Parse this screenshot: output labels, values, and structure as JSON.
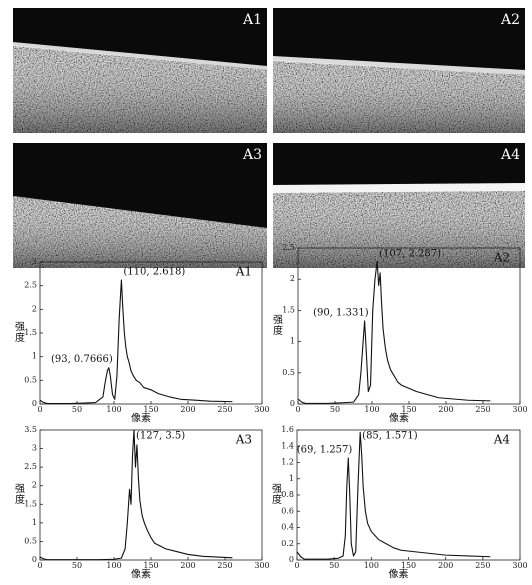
{
  "images": [
    {
      "label": "A1"
    },
    {
      "label": "A2"
    },
    {
      "label": "A3"
    },
    {
      "label": "A4"
    }
  ],
  "chart_data": [
    {
      "type": "line",
      "label": "A1",
      "ylabel": "强度",
      "xlabel": "像素",
      "xlim": [
        0,
        300
      ],
      "xticks": [
        0,
        50,
        100,
        150,
        200,
        250,
        300
      ],
      "ylim": [
        0,
        3
      ],
      "yticks": [
        0,
        0.5,
        1,
        1.5,
        2,
        2.5,
        3
      ],
      "x": [
        0,
        5,
        10,
        20,
        40,
        60,
        75,
        85,
        88,
        91,
        93,
        95,
        98,
        101,
        104,
        107,
        110,
        112,
        114,
        116,
        118,
        120,
        123,
        126,
        130,
        135,
        140,
        150,
        160,
        175,
        190,
        210,
        230,
        260
      ],
      "series": [
        {
          "color": "#111111",
          "values": [
            0.08,
            0.03,
            0.01,
            0.01,
            0.01,
            0.02,
            0.03,
            0.15,
            0.45,
            0.7,
            0.7666,
            0.6,
            0.2,
            0.1,
            0.6,
            1.8,
            2.618,
            2.0,
            1.5,
            1.2,
            1.0,
            0.9,
            0.7,
            0.6,
            0.5,
            0.45,
            0.35,
            0.3,
            0.22,
            0.15,
            0.1,
            0.08,
            0.06,
            0.05
          ]
        }
      ],
      "annotations": [
        {
          "text": "(93, 0.7666)",
          "x": 93,
          "y": 0.7666
        },
        {
          "text": "(110, 2.618)",
          "x": 110,
          "y": 2.618
        }
      ]
    },
    {
      "type": "line",
      "label": "A2",
      "ylabel": "强度",
      "xlabel": "像素",
      "xlim": [
        0,
        300
      ],
      "xticks": [
        0,
        50,
        100,
        150,
        200,
        250,
        300
      ],
      "ylim": [
        0,
        2.5
      ],
      "yticks": [
        0,
        0.5,
        1,
        1.5,
        2,
        2.5
      ],
      "x": [
        0,
        5,
        10,
        20,
        40,
        60,
        75,
        82,
        85,
        88,
        90,
        92,
        95,
        98,
        101,
        104,
        107,
        109,
        111,
        113,
        115,
        118,
        121,
        125,
        130,
        135,
        140,
        150,
        160,
        175,
        190,
        210,
        230,
        260
      ],
      "series": [
        {
          "color": "#111111",
          "values": [
            0.08,
            0.03,
            0.01,
            0.01,
            0.01,
            0.02,
            0.03,
            0.15,
            0.5,
            1.0,
            1.331,
            0.9,
            0.2,
            0.3,
            1.5,
            2.0,
            2.287,
            1.9,
            2.1,
            1.6,
            1.2,
            0.9,
            0.7,
            0.55,
            0.45,
            0.35,
            0.3,
            0.25,
            0.2,
            0.15,
            0.1,
            0.08,
            0.06,
            0.05
          ]
        }
      ],
      "annotations": [
        {
          "text": "(90, 1.331)",
          "x": 90,
          "y": 1.331
        },
        {
          "text": "(107, 2.287)",
          "x": 107,
          "y": 2.287
        }
      ]
    },
    {
      "type": "line",
      "label": "A3",
      "ylabel": "强度",
      "xlabel": "像素",
      "xlim": [
        0,
        300
      ],
      "xticks": [
        0,
        50,
        100,
        150,
        200,
        250,
        300
      ],
      "ylim": [
        0,
        3.5
      ],
      "yticks": [
        0,
        0.5,
        1,
        1.5,
        2,
        2.5,
        3,
        3.5
      ],
      "x": [
        0,
        5,
        10,
        20,
        40,
        60,
        80,
        100,
        110,
        115,
        118,
        121,
        123,
        125,
        127,
        129,
        131,
        133,
        135,
        138,
        141,
        145,
        150,
        155,
        160,
        170,
        180,
        200,
        220,
        240,
        260
      ],
      "series": [
        {
          "color": "#111111",
          "values": [
            0.08,
            0.03,
            0.01,
            0.01,
            0.01,
            0.01,
            0.01,
            0.02,
            0.05,
            0.3,
            1.0,
            1.9,
            1.5,
            2.8,
            3.5,
            2.5,
            3.1,
            2.2,
            1.6,
            1.2,
            1.0,
            0.8,
            0.6,
            0.45,
            0.4,
            0.3,
            0.25,
            0.15,
            0.1,
            0.08,
            0.06
          ]
        }
      ],
      "annotations": [
        {
          "text": "(127, 3.5)",
          "x": 127,
          "y": 3.5
        }
      ]
    },
    {
      "type": "line",
      "label": "A4",
      "ylabel": "强度",
      "xlabel": "像素",
      "xlim": [
        0,
        300
      ],
      "xticks": [
        0,
        50,
        100,
        150,
        200,
        250,
        300
      ],
      "ylim": [
        0,
        1.6
      ],
      "yticks": [
        0,
        0.2,
        0.4,
        0.6,
        0.8,
        1,
        1.2,
        1.4,
        1.6
      ],
      "x": [
        0,
        5,
        10,
        20,
        40,
        55,
        62,
        65,
        67,
        69,
        71,
        73,
        76,
        79,
        82,
        85,
        87,
        89,
        92,
        95,
        100,
        105,
        110,
        120,
        130,
        140,
        160,
        180,
        200,
        230,
        260
      ],
      "series": [
        {
          "color": "#111111",
          "values": [
            0.1,
            0.04,
            0.01,
            0.01,
            0.01,
            0.02,
            0.05,
            0.3,
            0.9,
            1.257,
            0.8,
            0.2,
            0.05,
            0.1,
            0.9,
            1.571,
            1.3,
            0.9,
            0.6,
            0.45,
            0.35,
            0.3,
            0.25,
            0.2,
            0.15,
            0.12,
            0.1,
            0.08,
            0.06,
            0.05,
            0.04
          ]
        }
      ],
      "annotations": [
        {
          "text": "(69, 1.257)",
          "x": 69,
          "y": 1.257
        },
        {
          "text": "(85, 1.571)",
          "x": 85,
          "y": 1.571
        }
      ]
    }
  ]
}
